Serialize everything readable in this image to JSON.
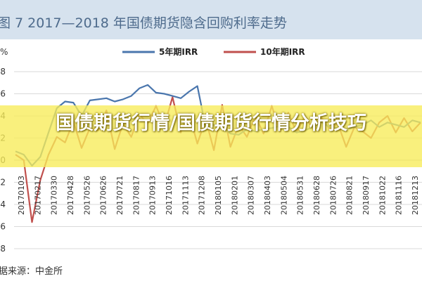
{
  "header": {
    "figure_title": "图 7  2017—2018 年国债期货隐含回购利率走势"
  },
  "source_note": "据来源：中金所",
  "overlay": {
    "headline": "国债期货行情/国债期货行情分析技巧"
  },
  "colors": {
    "series_5y": "#4a76ad",
    "series_10y": "#c0504d",
    "grid": "#d9d9d9",
    "banner": "#f7ec58"
  },
  "chart_data": {
    "type": "line",
    "title": "",
    "ylabel": "%",
    "xlabel": "",
    "ylim": [
      -8,
      8
    ],
    "grid": true,
    "legend_position": "top",
    "yticks": [
      "8",
      "6",
      "4",
      "2",
      "0",
      "-2",
      "-4",
      "-6",
      "-8"
    ],
    "x_tick_labels": [
      "20170103",
      "20170217",
      "20170330",
      "20170428",
      "20170526",
      "20170626",
      "20170721",
      "20170817",
      "20170913",
      "20171016",
      "20171113",
      "20171208",
      "20180105",
      "20180201",
      "20180307",
      "20180403",
      "20180504",
      "20180531",
      "20180628",
      "20180726",
      "20180821",
      "20180917",
      "20181022",
      "20181116",
      "20181213"
    ],
    "series": [
      {
        "name": "5年期IRR",
        "values": [
          0.8,
          0.5,
          -0.5,
          0.3,
          2.5,
          4.7,
          5.3,
          5.2,
          4.0,
          5.4,
          5.5,
          5.6,
          5.3,
          5.5,
          5.8,
          6.5,
          6.8,
          6.1,
          6.0,
          5.8,
          5.6,
          6.2,
          6.7,
          3.0,
          3.2,
          3.0,
          2.4,
          2.3,
          2.8,
          2.6,
          2.8,
          2.9,
          3.1,
          3.0,
          2.5,
          2.7,
          3.0,
          3.4,
          3.0,
          2.9,
          2.8,
          3.0,
          3.2,
          3.6,
          3.0,
          3.4,
          3.2,
          3.0,
          3.6,
          3.4
        ]
      },
      {
        "name": "10年期IRR",
        "values": [
          0.5,
          0.0,
          -5.6,
          -1.8,
          0.5,
          2.1,
          1.6,
          3.5,
          1.1,
          2.9,
          2.7,
          4.5,
          1.0,
          3.3,
          2.1,
          4.1,
          3.3,
          4.9,
          3.1,
          5.7,
          2.5,
          4.2,
          1.5,
          3.7,
          0.9,
          5.0,
          1.2,
          3.2,
          2.1,
          4.0,
          2.4,
          4.9,
          2.6,
          4.3,
          2.5,
          4.0,
          2.8,
          3.9,
          2.8,
          3.3,
          1.2,
          3.0,
          2.6,
          2.0,
          3.4,
          4.0,
          2.5,
          3.8,
          2.6,
          3.4
        ]
      }
    ]
  }
}
